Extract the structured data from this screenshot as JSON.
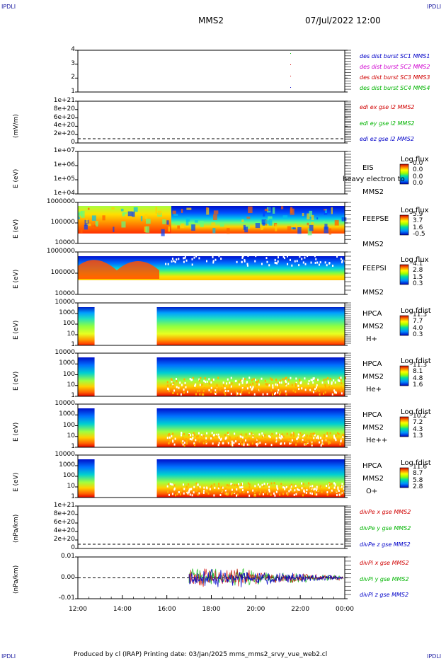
{
  "corners": {
    "tl": "IPDLI",
    "tr": "IPDLI",
    "bl": "IPDLI",
    "br": "IPDLI"
  },
  "header": {
    "title": "MMS2",
    "datetime": "07/Jul/2022 12:00"
  },
  "footer": {
    "text": "Produced by cl (IRAP)   Printing date: 03/Jan/2025   mms_mms2_srvy_vue_web2.cl"
  },
  "colors": {
    "blue": "#0000c8",
    "magenta": "#d000d0",
    "red": "#d00000",
    "green": "#00b400"
  },
  "chart_data": [
    {
      "type": "scatter",
      "yticks": [
        "4",
        "3",
        "2",
        "1"
      ],
      "legend": [
        {
          "text": "des dist burst SC1 MMS1",
          "color": "#0000c8"
        },
        {
          "text": "des dist burst SC2 MMS2",
          "color": "#d000d0"
        },
        {
          "text": "des dist burst SC3 MMS3",
          "color": "#d00000"
        },
        {
          "text": "des dist burst SC4 MMS4",
          "color": "#00b400"
        }
      ]
    },
    {
      "type": "line",
      "ylabel": "(mV/m)",
      "yticks": [
        "1e+21",
        "8e+20",
        "6e+20",
        "4e+20",
        "2e+20",
        "0"
      ],
      "legend": [
        {
          "text": "edi ex gse l2 MMS2",
          "color": "#d00000"
        },
        {
          "text": "edi ey gse l2 MMS2",
          "color": "#00b400"
        },
        {
          "text": "edi ez gse l2 MMS2",
          "color": "#0000c8"
        }
      ]
    },
    {
      "type": "heatmap",
      "ylabel": "E (eV)",
      "yticks": [
        "1e+07",
        "1e+06",
        "1e+05",
        "1e+04"
      ],
      "inst": [
        "EIS",
        "MMS2"
      ],
      "overlap": "heavy electron to",
      "cb_title": "Log flux",
      "cb_vals": [
        "0.0",
        "0.0",
        "0.0",
        "0.0"
      ]
    },
    {
      "type": "heatmap",
      "ylabel": "E (eV)",
      "yticks": [
        "1000000",
        "100000",
        "10000"
      ],
      "inst": [
        "FEEPSE",
        "MMS2"
      ],
      "cb_title": "Log flux",
      "cb_vals": [
        "5.9",
        "3.7",
        "1.6",
        "-0.5"
      ]
    },
    {
      "type": "heatmap",
      "ylabel": "E (eV)",
      "yticks": [
        "1000000",
        "100000",
        "10000"
      ],
      "inst": [
        "FEEPSI",
        "MMS2"
      ],
      "cb_title": "Log flux",
      "cb_vals": [
        "4.1",
        "2.8",
        "1.5",
        "0.3"
      ]
    },
    {
      "type": "heatmap",
      "ylabel": "E (eV)",
      "yticks": [
        "10000",
        "1000",
        "100",
        "10",
        "1"
      ],
      "inst": [
        "HPCA",
        "MMS2",
        "H+"
      ],
      "cb_title": "Log fdist",
      "cb_vals": [
        "11.3",
        "7.7",
        "4.0",
        "0.3"
      ]
    },
    {
      "type": "heatmap",
      "ylabel": "E (eV)",
      "yticks": [
        "10000",
        "1000",
        "100",
        "10",
        "1"
      ],
      "inst": [
        "HPCA",
        "MMS2",
        "He+"
      ],
      "cb_title": "Log fdist",
      "cb_vals": [
        "11.3",
        "8.1",
        "4.8",
        "1.6"
      ]
    },
    {
      "type": "heatmap",
      "ylabel": "E (eV)",
      "yticks": [
        "10000",
        "1000",
        "100",
        "10",
        "1"
      ],
      "inst": [
        "HPCA",
        "MMS2",
        "He++"
      ],
      "cb_title": "Log fdist",
      "cb_vals": [
        "10.2",
        "7.2",
        "4.3",
        "1.3"
      ]
    },
    {
      "type": "heatmap",
      "ylabel": "E (eV)",
      "yticks": [
        "10000",
        "1000",
        "100",
        "10",
        "1"
      ],
      "inst": [
        "HPCA",
        "MMS2",
        "O+"
      ],
      "cb_title": "Log fdist",
      "cb_vals": [
        "11.6",
        "8.7",
        "5.8",
        "2.8"
      ]
    },
    {
      "type": "line",
      "ylabel": "(nPa/km)",
      "yticks": [
        "1e+21",
        "8e+20",
        "6e+20",
        "4e+20",
        "2e+20",
        "0"
      ],
      "legend": [
        {
          "text": "divPe x gse MMS2",
          "color": "#d00000"
        },
        {
          "text": "divPe y gse MMS2",
          "color": "#00b400"
        },
        {
          "text": "divPe z gse MMS2",
          "color": "#0000c8"
        }
      ]
    },
    {
      "type": "line",
      "ylabel": "(nPa/km)",
      "yticks": [
        "0.01",
        "0.00",
        "-0.01"
      ],
      "legend": [
        {
          "text": "divPi x gse MMS2",
          "color": "#d00000"
        },
        {
          "text": "divPi y gse MMS2",
          "color": "#00b400"
        },
        {
          "text": "divPi z gse MMS2",
          "color": "#0000c8"
        }
      ]
    }
  ],
  "xaxis": {
    "ticks": [
      "12:00",
      "14:00",
      "16:00",
      "18:00",
      "20:00",
      "22:00",
      "00:00"
    ]
  }
}
